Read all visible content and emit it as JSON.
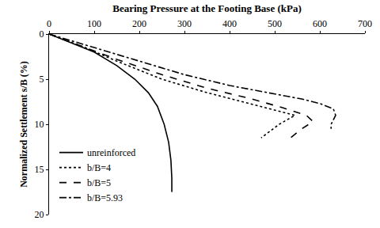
{
  "chart_data": {
    "type": "line",
    "x_label": "Bearing Pressure at the Footing Base (kPa)",
    "y_label": "Normalized Settlement s/B (%)",
    "xlim": [
      0,
      700
    ],
    "xticks": [
      0,
      100,
      200,
      300,
      400,
      500,
      600,
      700
    ],
    "ylim": [
      0,
      20
    ],
    "yticks": [
      0,
      5,
      10,
      15,
      20
    ],
    "grid": false,
    "legend": "lower left",
    "series": [
      {
        "name": "unreinforced",
        "color": "#000000",
        "line_style": "solid",
        "x": [
          0,
          50,
          100,
          150,
          190,
          220,
          240,
          255,
          265,
          270,
          272,
          272
        ],
        "values": [
          0,
          1,
          2,
          3.5,
          5,
          6.5,
          8,
          10,
          12,
          14,
          16,
          17.5
        ]
      },
      {
        "name": "b/B=4",
        "color": "#000000",
        "line_style": "dot",
        "x": [
          0,
          80,
          150,
          250,
          350,
          450,
          530,
          545,
          510,
          470
        ],
        "values": [
          0,
          1.5,
          3,
          5,
          6.5,
          7.8,
          8.8,
          9,
          10,
          11.5
        ]
      },
      {
        "name": "b/B=5",
        "color": "#000000",
        "line_style": "dash",
        "x": [
          0,
          80,
          150,
          250,
          350,
          450,
          520,
          570,
          585,
          560,
          535
        ],
        "values": [
          0,
          1.5,
          2.8,
          4.5,
          6,
          7.2,
          8.2,
          9,
          9.7,
          10.5,
          11.5
        ]
      },
      {
        "name": "b/B=5.93",
        "color": "#000000",
        "line_style": "dashdot",
        "x": [
          0,
          100,
          200,
          300,
          400,
          500,
          560,
          600,
          630,
          635,
          625,
          625
        ],
        "values": [
          0,
          1.5,
          3,
          4.5,
          5.7,
          6.6,
          7.2,
          7.7,
          8.3,
          9,
          10,
          10.5
        ]
      }
    ]
  }
}
